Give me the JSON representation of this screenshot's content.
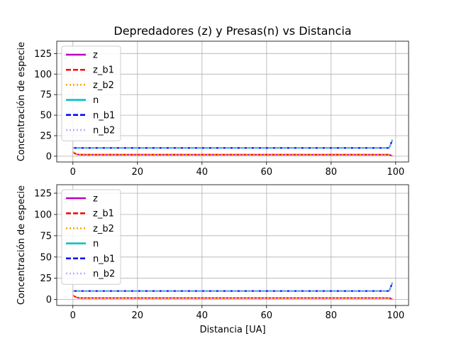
{
  "figure": {
    "title": "Depredadores (z) y Presas(n) vs Distancia",
    "xlabel": "Distancia [UA]"
  },
  "chart_data": [
    {
      "type": "line",
      "title": "Depredadores (z) y Presas(n) vs Distancia",
      "xlabel": "",
      "ylabel": "Concentración de especie",
      "xlim": [
        -5,
        104
      ],
      "ylim": [
        -7,
        140
      ],
      "xticks": [
        0,
        20,
        40,
        60,
        80,
        100
      ],
      "yticks": [
        0,
        25,
        50,
        75,
        100,
        125
      ],
      "grid": true,
      "legend_position": "upper-left",
      "series": [
        {
          "name": "z",
          "color": "#bf00bf",
          "style": "solid",
          "x": [
            0,
            1,
            2,
            10,
            20,
            30,
            40,
            50,
            60,
            70,
            80,
            90,
            98,
            99
          ],
          "y": [
            5,
            2.5,
            1.8,
            1.8,
            1.8,
            1.8,
            1.8,
            1.8,
            1.8,
            1.8,
            1.8,
            1.8,
            1.8,
            0.5
          ]
        },
        {
          "name": "z_b1",
          "color": "#ff0000",
          "style": "dashed",
          "x": [
            0,
            1,
            2,
            10,
            20,
            30,
            40,
            50,
            60,
            70,
            80,
            90,
            98,
            99
          ],
          "y": [
            5,
            2.5,
            1.8,
            1.8,
            1.8,
            1.8,
            1.8,
            1.8,
            1.8,
            1.8,
            1.8,
            1.8,
            1.8,
            0.5
          ]
        },
        {
          "name": "z_b2",
          "color": "#ffa500",
          "style": "dotted",
          "x": [
            0,
            1,
            2,
            10,
            20,
            30,
            40,
            50,
            60,
            70,
            80,
            90,
            98,
            99
          ],
          "y": [
            5,
            2.5,
            1.8,
            1.8,
            1.8,
            1.8,
            1.8,
            1.8,
            1.8,
            1.8,
            1.8,
            1.8,
            1.8,
            0.5
          ]
        },
        {
          "name": "n",
          "color": "#00bfbf",
          "style": "solid",
          "x": [
            0,
            10,
            20,
            30,
            40,
            50,
            60,
            70,
            80,
            90,
            98,
            99
          ],
          "y": [
            10,
            10,
            10,
            10,
            10,
            10,
            10,
            10,
            10,
            10,
            10,
            20
          ]
        },
        {
          "name": "n_b1",
          "color": "#0000ff",
          "style": "dashed",
          "x": [
            0,
            10,
            20,
            30,
            40,
            50,
            60,
            70,
            80,
            90,
            98,
            99
          ],
          "y": [
            10,
            10,
            10,
            10,
            10,
            10,
            10,
            10,
            10,
            10,
            10,
            20
          ]
        },
        {
          "name": "n_b2",
          "color": "#c4a8ff",
          "style": "dotted",
          "x": [
            0,
            10,
            20,
            30,
            40,
            50,
            60,
            70,
            80,
            90,
            98,
            99
          ],
          "y": [
            10,
            10,
            10,
            10,
            10,
            10,
            10,
            10,
            10,
            10,
            10,
            20
          ]
        }
      ]
    },
    {
      "type": "line",
      "title": "",
      "xlabel": "Distancia [UA]",
      "ylabel": "Concentración de especie",
      "xlim": [
        -5,
        104
      ],
      "ylim": [
        -7,
        135
      ],
      "xticks": [
        0,
        20,
        40,
        60,
        80,
        100
      ],
      "yticks": [
        0,
        25,
        50,
        75,
        100,
        125
      ],
      "grid": true,
      "legend_position": "upper-left",
      "series": [
        {
          "name": "z",
          "color": "#bf00bf",
          "style": "solid",
          "x": [
            0,
            1,
            2,
            10,
            20,
            30,
            40,
            50,
            60,
            70,
            80,
            90,
            98,
            99
          ],
          "y": [
            5,
            2.5,
            1.8,
            1.8,
            1.8,
            1.8,
            1.8,
            1.8,
            1.8,
            1.8,
            1.8,
            1.8,
            1.8,
            0.5
          ]
        },
        {
          "name": "z_b1",
          "color": "#ff0000",
          "style": "dashed",
          "x": [
            0,
            1,
            2,
            10,
            20,
            30,
            40,
            50,
            60,
            70,
            80,
            90,
            98,
            99
          ],
          "y": [
            5,
            2.5,
            1.8,
            1.8,
            1.8,
            1.8,
            1.8,
            1.8,
            1.8,
            1.8,
            1.8,
            1.8,
            1.8,
            0.5
          ]
        },
        {
          "name": "z_b2",
          "color": "#ffa500",
          "style": "dotted",
          "x": [
            0,
            1,
            2,
            10,
            20,
            30,
            40,
            50,
            60,
            70,
            80,
            90,
            98,
            99
          ],
          "y": [
            5,
            2.5,
            1.8,
            1.8,
            1.8,
            1.8,
            1.8,
            1.8,
            1.8,
            1.8,
            1.8,
            1.8,
            1.8,
            0.5
          ]
        },
        {
          "name": "n",
          "color": "#00bfbf",
          "style": "solid",
          "x": [
            0,
            10,
            20,
            30,
            40,
            50,
            60,
            70,
            80,
            90,
            98,
            99
          ],
          "y": [
            10,
            10,
            10,
            10,
            10,
            10,
            10,
            10,
            10,
            10,
            10,
            20
          ]
        },
        {
          "name": "n_b1",
          "color": "#0000ff",
          "style": "dashed",
          "x": [
            0,
            10,
            20,
            30,
            40,
            50,
            60,
            70,
            80,
            90,
            98,
            99
          ],
          "y": [
            10,
            10,
            10,
            10,
            10,
            10,
            10,
            10,
            10,
            10,
            10,
            20
          ]
        },
        {
          "name": "n_b2",
          "color": "#c4a8ff",
          "style": "dotted",
          "x": [
            0,
            10,
            20,
            30,
            40,
            50,
            60,
            70,
            80,
            90,
            98,
            99
          ],
          "y": [
            10,
            10,
            10,
            10,
            10,
            10,
            10,
            10,
            10,
            10,
            10,
            20
          ]
        }
      ]
    }
  ]
}
